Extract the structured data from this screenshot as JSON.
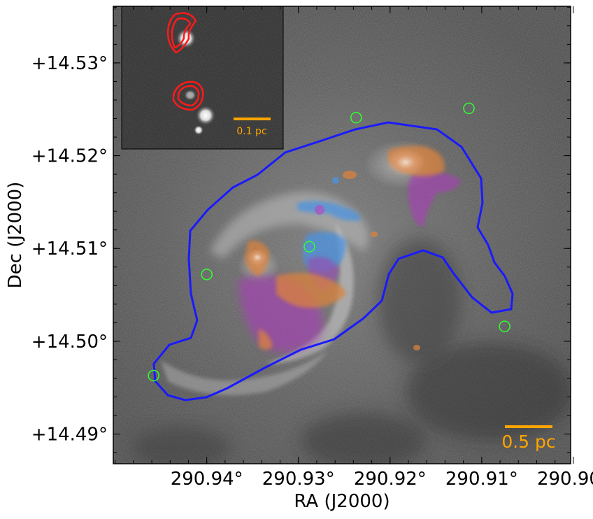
{
  "axes": {
    "xlabel": "RA (J2000)",
    "ylabel": "Dec (J2000)",
    "x_ticks": [
      {
        "value": 290.94,
        "label": "290.94°"
      },
      {
        "value": 290.93,
        "label": "290.93°"
      },
      {
        "value": 290.92,
        "label": "290.92°"
      },
      {
        "value": 290.91,
        "label": "290.91°"
      },
      {
        "value": 290.9,
        "label": "290.90°"
      }
    ],
    "y_ticks": [
      {
        "value": 14.53,
        "label": "+14.53°"
      },
      {
        "value": 14.52,
        "label": "+14.52°"
      },
      {
        "value": 14.51,
        "label": "+14.51°"
      },
      {
        "value": 14.5,
        "label": "+14.50°"
      },
      {
        "value": 14.49,
        "label": "+14.49°"
      }
    ],
    "ra_range": [
      290.9502,
      290.9003
    ],
    "dec_range": [
      14.5361,
      14.4868
    ]
  },
  "main_scale_bar": {
    "label": "0.5 pc",
    "color": "#ffa500"
  },
  "inset": {
    "scale_bar_label": "0.1 pc",
    "scale_bar_color": "#ffa500",
    "contour_color": "#ff1a1a"
  },
  "colors": {
    "contour": "#1a1aff",
    "markers": "#33ff33",
    "emission_orange": "#e07a2a",
    "emission_purple": "#a030b0",
    "emission_blue": "#3a8ee8"
  },
  "green_markers": [
    {
      "ra": 290.9237,
      "dec": 14.5241
    },
    {
      "ra": 290.9114,
      "dec": 14.5251
    },
    {
      "ra": 290.9288,
      "dec": 14.5102
    },
    {
      "ra": 290.94,
      "dec": 14.5072
    },
    {
      "ra": 290.9075,
      "dec": 14.5016
    },
    {
      "ra": 290.9458,
      "dec": 14.4963
    }
  ]
}
